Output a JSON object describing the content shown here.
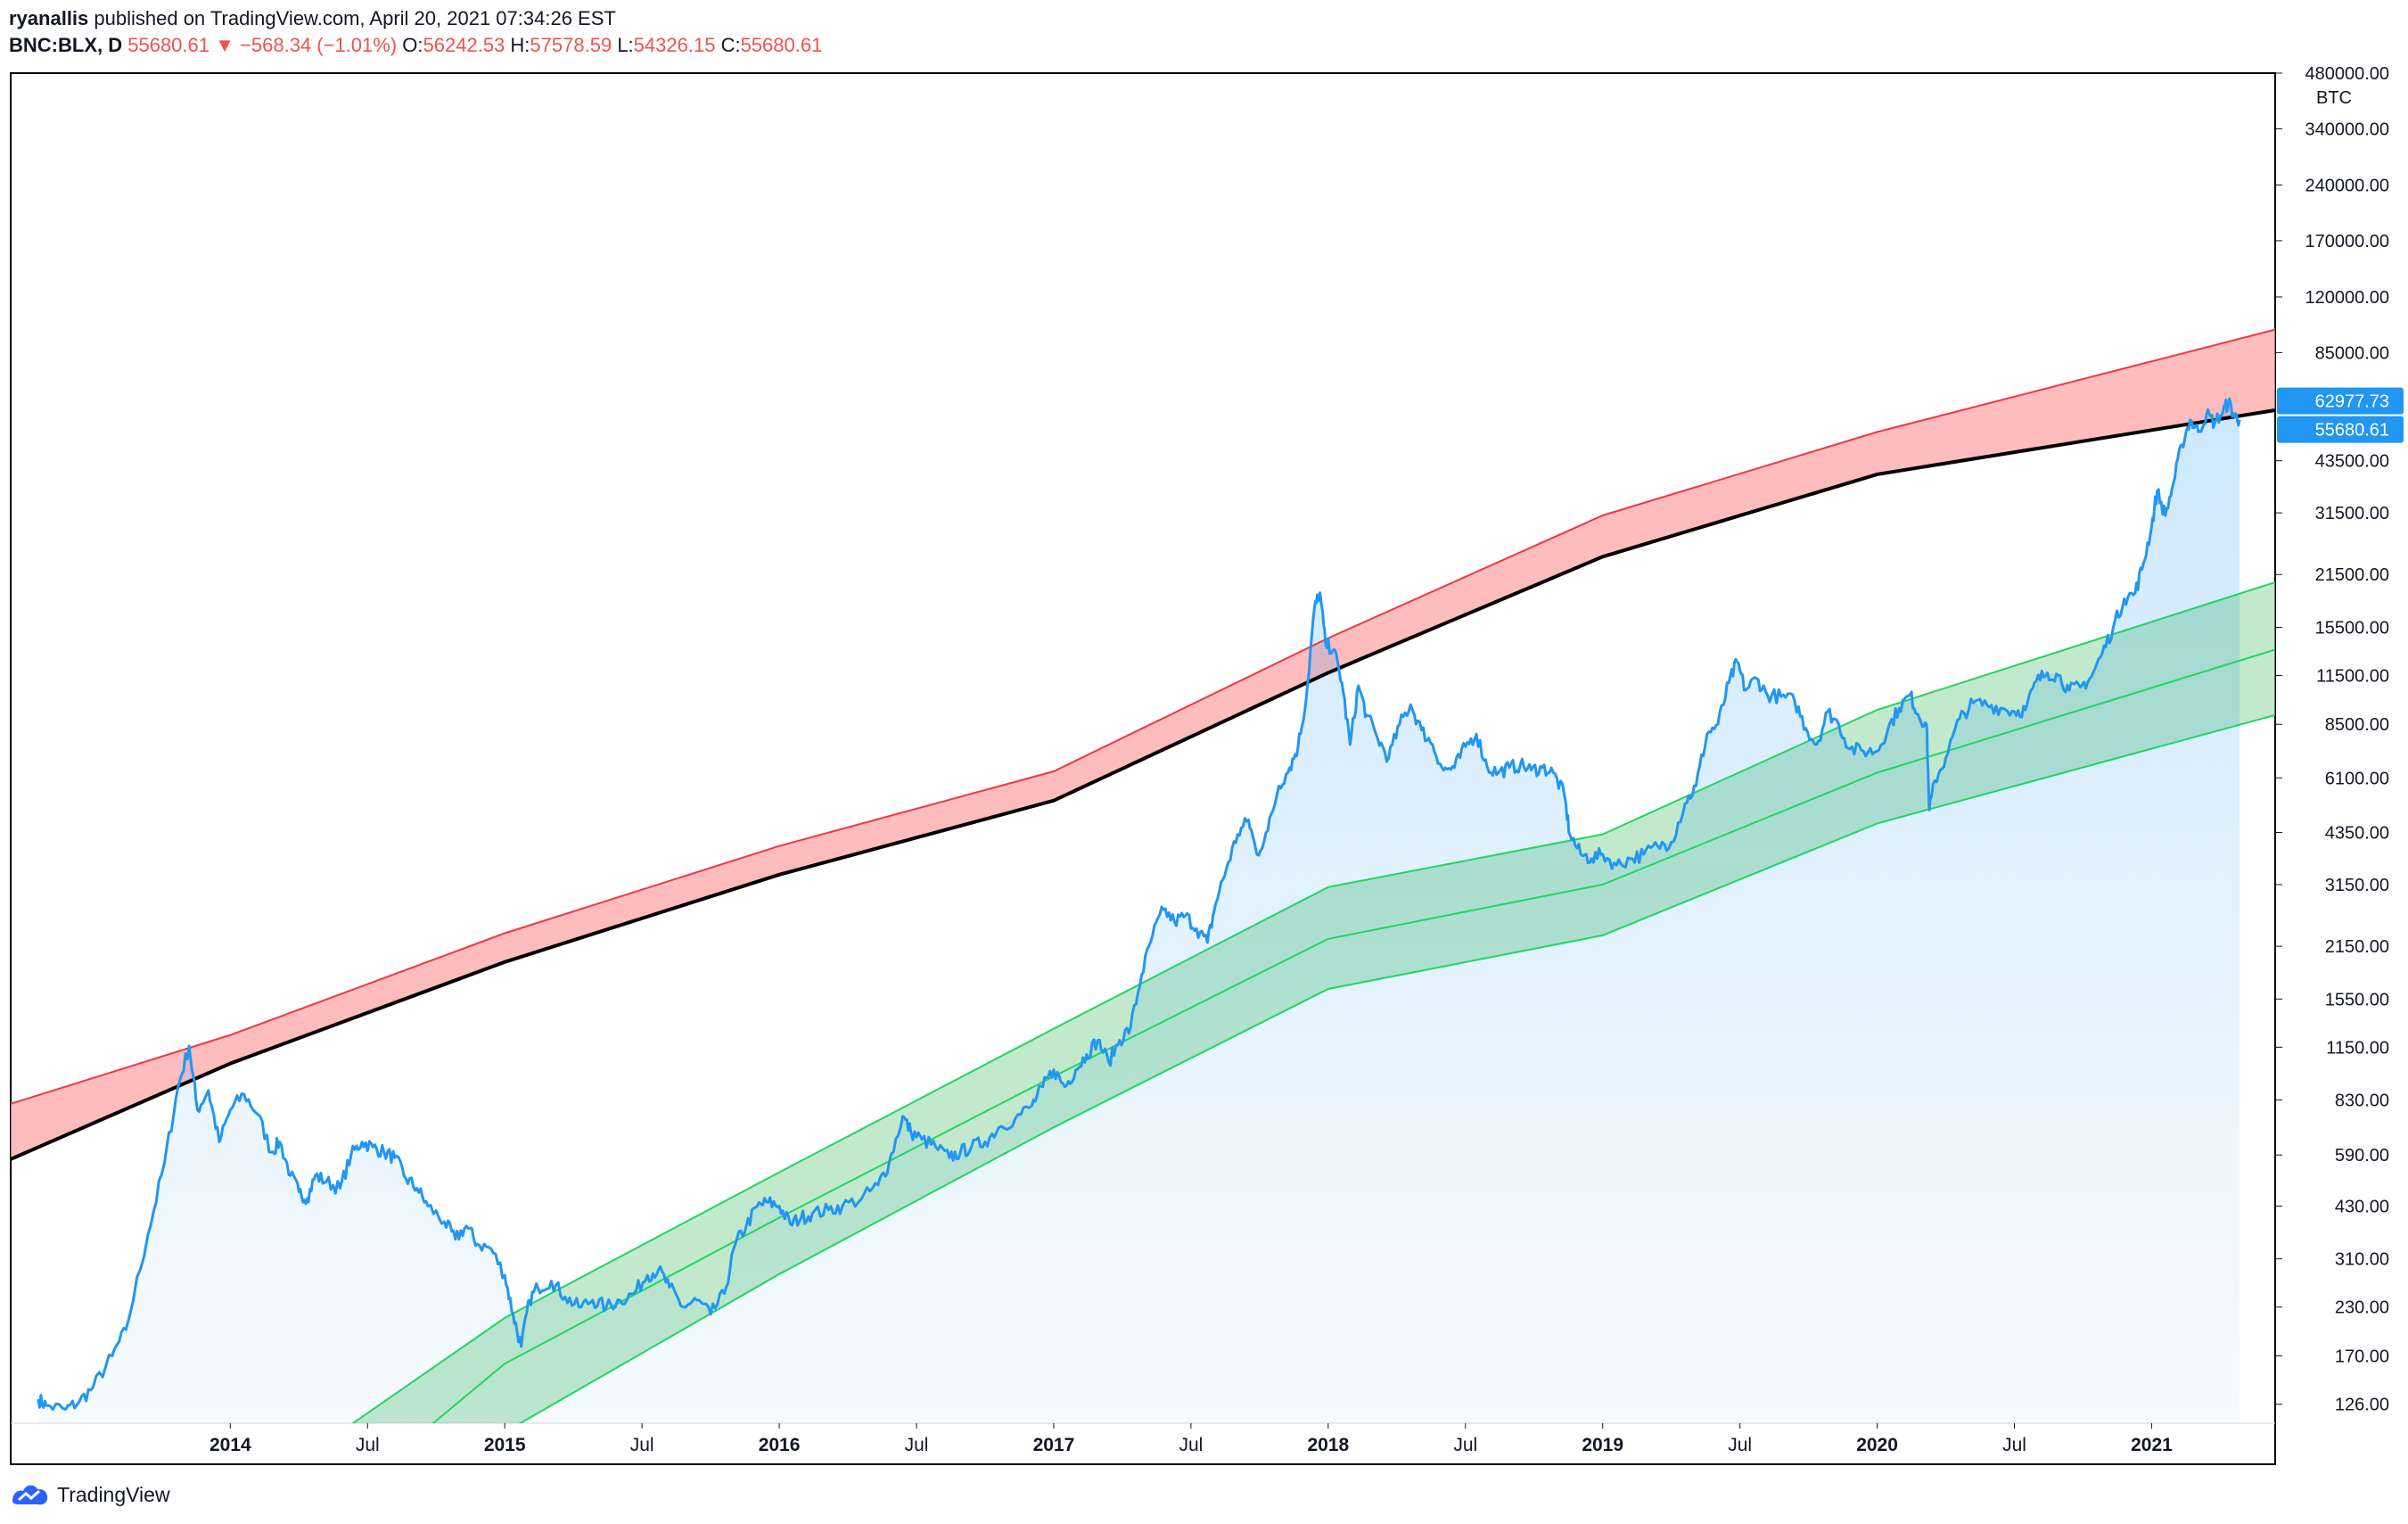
{
  "header": {
    "author": "ryanallis",
    "published": " published on TradingView.com, April 20, 2021 07:34:26 EST",
    "symbol": "BNC:BLX, D",
    "last": "55680.61",
    "change": "−568.34 (−1.01%)",
    "o_label": "O:",
    "o_val": "56242.53",
    "h_label": "H:",
    "h_val": "57578.59",
    "l_label": "L:",
    "l_val": "54326.15",
    "c_label": "C:",
    "c_val": "55680.61"
  },
  "footer": {
    "brand": "TradingView"
  },
  "colors": {
    "price": "#2196f3",
    "red_band": "#ff9f9f",
    "red_line": "#f23645",
    "green_band": "#8fd7a0",
    "green_line": "#1ed760",
    "fair": "#000000",
    "axis_text": "#131722",
    "tag_bg": "#2196f3"
  },
  "chart_data": {
    "type": "line",
    "title": "BNC:BLX, D",
    "scale": "log",
    "currency_label": "BTC",
    "ylim": [
      112,
      480000
    ],
    "y_ticks": [
      {
        "v": 126,
        "label": "126.00"
      },
      {
        "v": 170,
        "label": "170.00"
      },
      {
        "v": 230,
        "label": "230.00"
      },
      {
        "v": 310,
        "label": "310.00"
      },
      {
        "v": 430,
        "label": "430.00"
      },
      {
        "v": 590,
        "label": "590.00"
      },
      {
        "v": 830,
        "label": "830.00"
      },
      {
        "v": 1150,
        "label": "1150.00"
      },
      {
        "v": 1550,
        "label": "1550.00"
      },
      {
        "v": 2150,
        "label": "2150.00"
      },
      {
        "v": 3150,
        "label": "3150.00"
      },
      {
        "v": 4350,
        "label": "4350.00"
      },
      {
        "v": 6100,
        "label": "6100.00"
      },
      {
        "v": 8500,
        "label": "8500.00"
      },
      {
        "v": 11500,
        "label": "11500.00"
      },
      {
        "v": 15500,
        "label": "15500.00"
      },
      {
        "v": 21500,
        "label": "21500.00"
      },
      {
        "v": 31500,
        "label": "31500.00"
      },
      {
        "v": 43500,
        "label": "43500.00"
      },
      {
        "v": 85000,
        "label": "85000.00"
      },
      {
        "v": 120000,
        "label": "120000.00"
      },
      {
        "v": 170000,
        "label": "170000.00"
      },
      {
        "v": 240000,
        "label": "240000.00"
      },
      {
        "v": 340000,
        "label": "340000.00"
      },
      {
        "v": 480000,
        "label": "480000.00"
      }
    ],
    "x_ticks": [
      {
        "t": 2014.0,
        "label": "2014",
        "bold": true
      },
      {
        "t": 2014.5,
        "label": "Jul",
        "bold": false
      },
      {
        "t": 2015.0,
        "label": "2015",
        "bold": true
      },
      {
        "t": 2015.5,
        "label": "Jul",
        "bold": false
      },
      {
        "t": 2016.0,
        "label": "2016",
        "bold": true
      },
      {
        "t": 2016.5,
        "label": "Jul",
        "bold": false
      },
      {
        "t": 2017.0,
        "label": "2017",
        "bold": true
      },
      {
        "t": 2017.5,
        "label": "Jul",
        "bold": false
      },
      {
        "t": 2018.0,
        "label": "2018",
        "bold": true
      },
      {
        "t": 2018.5,
        "label": "Jul",
        "bold": false
      },
      {
        "t": 2019.0,
        "label": "2019",
        "bold": true
      },
      {
        "t": 2019.5,
        "label": "Jul",
        "bold": false
      },
      {
        "t": 2020.0,
        "label": "2020",
        "bold": true
      },
      {
        "t": 2020.5,
        "label": "Jul",
        "bold": false
      },
      {
        "t": 2021.0,
        "label": "2021",
        "bold": true
      }
    ],
    "xlim": [
      2013.2,
      2021.45
    ],
    "price_tags": [
      {
        "v": 62977.73,
        "label": "62977.73"
      },
      {
        "v": 55680.61,
        "label": "55680.61"
      }
    ],
    "curves": {
      "red_upper": [
        [
          2013.2,
          810
        ],
        [
          2014.0,
          1240
        ],
        [
          2015.0,
          2330
        ],
        [
          2016.0,
          4000
        ],
        [
          2017.0,
          6350
        ],
        [
          2018.0,
          14500
        ],
        [
          2019.0,
          31000
        ],
        [
          2020.0,
          52000
        ],
        [
          2021.45,
          98000
        ]
      ],
      "fair_value": [
        [
          2013.2,
          575
        ],
        [
          2014.0,
          1040
        ],
        [
          2015.0,
          1950
        ],
        [
          2016.0,
          3350
        ],
        [
          2017.0,
          5300
        ],
        [
          2018.0,
          11700
        ],
        [
          2019.0,
          24000
        ],
        [
          2020.0,
          40000
        ],
        [
          2021.45,
          59500
        ]
      ],
      "green_upper": [
        [
          2014.4,
          106
        ],
        [
          2015.0,
          215
        ],
        [
          2016.0,
          530
        ],
        [
          2017.0,
          1290
        ],
        [
          2018.0,
          3100
        ],
        [
          2019.0,
          4300
        ],
        [
          2020.0,
          9300
        ],
        [
          2021.45,
          20500
        ]
      ],
      "green_mid": [
        [
          2014.7,
          106
        ],
        [
          2015.0,
          162
        ],
        [
          2016.0,
          400
        ],
        [
          2017.0,
          960
        ],
        [
          2018.0,
          2250
        ],
        [
          2019.0,
          3150
        ],
        [
          2020.0,
          6300
        ],
        [
          2021.45,
          13500
        ]
      ],
      "green_lower": [
        [
          2015.0,
          106
        ],
        [
          2016.0,
          282
        ],
        [
          2017.0,
          700
        ],
        [
          2018.0,
          1650
        ],
        [
          2019.0,
          2300
        ],
        [
          2020.0,
          4600
        ],
        [
          2021.45,
          9000
        ]
      ]
    },
    "series": [
      {
        "name": "BNC:BLX",
        "points": [
          [
            2013.3,
            130
          ],
          [
            2013.33,
            125
          ],
          [
            2013.4,
            122
          ],
          [
            2013.45,
            128
          ],
          [
            2013.5,
            140
          ],
          [
            2013.57,
            170
          ],
          [
            2013.62,
            200
          ],
          [
            2013.7,
            360
          ],
          [
            2013.76,
            560
          ],
          [
            2013.81,
            900
          ],
          [
            2013.85,
            1160
          ],
          [
            2013.88,
            780
          ],
          [
            2013.92,
            880
          ],
          [
            2013.96,
            640
          ],
          [
            2014.0,
            780
          ],
          [
            2014.05,
            860
          ],
          [
            2014.1,
            760
          ],
          [
            2014.15,
            600
          ],
          [
            2014.18,
            640
          ],
          [
            2014.22,
            520
          ],
          [
            2014.25,
            470
          ],
          [
            2014.28,
            450
          ],
          [
            2014.31,
            520
          ],
          [
            2014.35,
            500
          ],
          [
            2014.4,
            480
          ],
          [
            2014.44,
            590
          ],
          [
            2014.48,
            640
          ],
          [
            2014.52,
            620
          ],
          [
            2014.56,
            600
          ],
          [
            2014.6,
            580
          ],
          [
            2014.64,
            510
          ],
          [
            2014.68,
            480
          ],
          [
            2014.72,
            430
          ],
          [
            2014.78,
            390
          ],
          [
            2014.82,
            350
          ],
          [
            2014.86,
            380
          ],
          [
            2014.9,
            340
          ],
          [
            2014.95,
            330
          ],
          [
            2015.0,
            280
          ],
          [
            2015.03,
            220
          ],
          [
            2015.06,
            180
          ],
          [
            2015.09,
            240
          ],
          [
            2015.12,
            260
          ],
          [
            2015.17,
            270
          ],
          [
            2015.22,
            245
          ],
          [
            2015.27,
            230
          ],
          [
            2015.32,
            240
          ],
          [
            2015.37,
            230
          ],
          [
            2015.42,
            240
          ],
          [
            2015.47,
            250
          ],
          [
            2015.52,
            280
          ],
          [
            2015.56,
            290
          ],
          [
            2015.6,
            260
          ],
          [
            2015.65,
            230
          ],
          [
            2015.7,
            240
          ],
          [
            2015.75,
            220
          ],
          [
            2015.8,
            250
          ],
          [
            2015.84,
            340
          ],
          [
            2015.88,
            380
          ],
          [
            2015.92,
            430
          ],
          [
            2015.96,
            440
          ],
          [
            2016.0,
            430
          ],
          [
            2016.04,
            385
          ],
          [
            2016.08,
            400
          ],
          [
            2016.12,
            410
          ],
          [
            2016.18,
            420
          ],
          [
            2016.23,
            430
          ],
          [
            2016.3,
            450
          ],
          [
            2016.36,
            490
          ],
          [
            2016.4,
            560
          ],
          [
            2016.45,
            750
          ],
          [
            2016.48,
            680
          ],
          [
            2016.52,
            650
          ],
          [
            2016.57,
            620
          ],
          [
            2016.62,
            580
          ],
          [
            2016.66,
            600
          ],
          [
            2016.7,
            620
          ],
          [
            2016.75,
            640
          ],
          [
            2016.8,
            700
          ],
          [
            2016.86,
            740
          ],
          [
            2016.92,
            800
          ],
          [
            2016.96,
            900
          ],
          [
            2017.0,
            1000
          ],
          [
            2017.04,
            900
          ],
          [
            2017.08,
            1000
          ],
          [
            2017.12,
            1100
          ],
          [
            2017.16,
            1200
          ],
          [
            2017.2,
            1050
          ],
          [
            2017.24,
            1200
          ],
          [
            2017.28,
            1300
          ],
          [
            2017.32,
            1800
          ],
          [
            2017.36,
            2300
          ],
          [
            2017.4,
            2700
          ],
          [
            2017.44,
            2500
          ],
          [
            2017.48,
            2600
          ],
          [
            2017.52,
            2400
          ],
          [
            2017.56,
            2200
          ],
          [
            2017.59,
            2800
          ],
          [
            2017.63,
            3500
          ],
          [
            2017.67,
            4300
          ],
          [
            2017.71,
            4700
          ],
          [
            2017.74,
            3800
          ],
          [
            2017.78,
            4400
          ],
          [
            2017.82,
            5800
          ],
          [
            2017.86,
            6500
          ],
          [
            2017.89,
            7400
          ],
          [
            2017.92,
            10000
          ],
          [
            2017.95,
            17500
          ],
          [
            2017.97,
            19200
          ],
          [
            2017.99,
            14000
          ],
          [
            2018.02,
            13500
          ],
          [
            2018.05,
            11000
          ],
          [
            2018.08,
            7500
          ],
          [
            2018.11,
            10800
          ],
          [
            2018.14,
            9000
          ],
          [
            2018.18,
            7800
          ],
          [
            2018.22,
            6900
          ],
          [
            2018.26,
            8500
          ],
          [
            2018.3,
            9600
          ],
          [
            2018.34,
            8200
          ],
          [
            2018.38,
            7500
          ],
          [
            2018.42,
            6400
          ],
          [
            2018.46,
            6500
          ],
          [
            2018.5,
            7400
          ],
          [
            2018.54,
            8000
          ],
          [
            2018.58,
            6500
          ],
          [
            2018.62,
            6300
          ],
          [
            2018.66,
            6500
          ],
          [
            2018.7,
            6600
          ],
          [
            2018.74,
            6400
          ],
          [
            2018.78,
            6500
          ],
          [
            2018.82,
            6300
          ],
          [
            2018.86,
            5500
          ],
          [
            2018.88,
            4300
          ],
          [
            2018.92,
            3800
          ],
          [
            2018.96,
            3700
          ],
          [
            2019.0,
            3800
          ],
          [
            2019.05,
            3550
          ],
          [
            2019.1,
            3700
          ],
          [
            2019.15,
            3800
          ],
          [
            2019.2,
            4000
          ],
          [
            2019.25,
            4100
          ],
          [
            2019.3,
            5200
          ],
          [
            2019.34,
            5800
          ],
          [
            2019.38,
            8000
          ],
          [
            2019.42,
            8500
          ],
          [
            2019.46,
            11000
          ],
          [
            2019.49,
            12500
          ],
          [
            2019.52,
            10500
          ],
          [
            2019.56,
            11300
          ],
          [
            2019.6,
            10200
          ],
          [
            2019.65,
            10100
          ],
          [
            2019.7,
            9800
          ],
          [
            2019.74,
            8300
          ],
          [
            2019.78,
            7500
          ],
          [
            2019.82,
            9200
          ],
          [
            2019.86,
            8500
          ],
          [
            2019.9,
            7300
          ],
          [
            2019.95,
            7200
          ],
          [
            2020.0,
            7200
          ],
          [
            2020.04,
            8300
          ],
          [
            2020.08,
            9400
          ],
          [
            2020.12,
            10200
          ],
          [
            2020.15,
            9000
          ],
          [
            2020.18,
            8500
          ],
          [
            2020.19,
            5000
          ],
          [
            2020.21,
            6000
          ],
          [
            2020.25,
            6900
          ],
          [
            2020.3,
            8800
          ],
          [
            2020.35,
            9700
          ],
          [
            2020.4,
            9600
          ],
          [
            2020.45,
            9400
          ],
          [
            2020.5,
            9200
          ],
          [
            2020.54,
            9300
          ],
          [
            2020.58,
            11100
          ],
          [
            2020.62,
            11700
          ],
          [
            2020.66,
            11500
          ],
          [
            2020.7,
            10500
          ],
          [
            2020.74,
            10700
          ],
          [
            2020.78,
            11400
          ],
          [
            2020.82,
            13200
          ],
          [
            2020.86,
            15500
          ],
          [
            2020.9,
            18500
          ],
          [
            2020.94,
            19200
          ],
          [
            2020.97,
            23000
          ],
          [
            2021.0,
            29000
          ],
          [
            2021.02,
            36000
          ],
          [
            2021.05,
            31000
          ],
          [
            2021.08,
            38000
          ],
          [
            2021.11,
            48000
          ],
          [
            2021.14,
            56000
          ],
          [
            2021.17,
            52000
          ],
          [
            2021.2,
            58000
          ],
          [
            2021.23,
            55000
          ],
          [
            2021.26,
            59000
          ],
          [
            2021.28,
            62800
          ],
          [
            2021.3,
            57500
          ],
          [
            2021.32,
            56000
          ]
        ]
      }
    ]
  }
}
